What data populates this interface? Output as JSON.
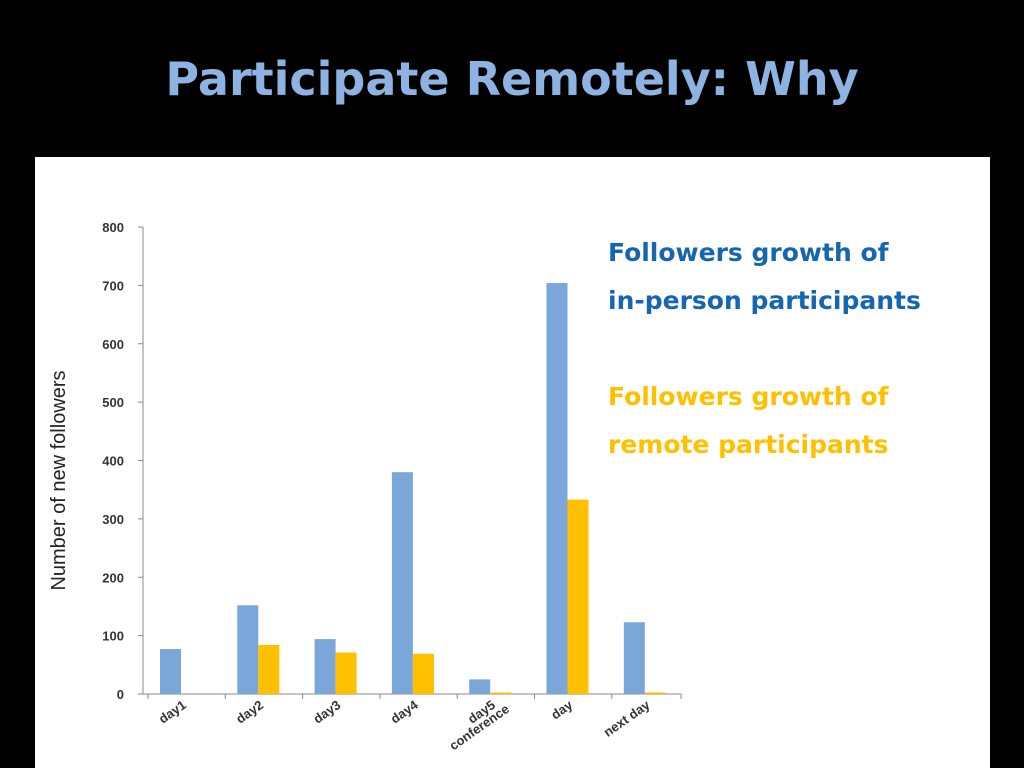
{
  "title": "Participate Remotely: Why",
  "legend": {
    "inperson_line1": "Followers growth of",
    "inperson_line2": "in-person participants",
    "remote_line1": "Followers growth of",
    "remote_line2": "remote participants"
  },
  "colors": {
    "background": "#000000",
    "title": "#8db3e2",
    "inperson_bar": "#7aa6da",
    "remote_bar": "#ffc000",
    "inperson_text": "#1565b0",
    "remote_text": "#ffc000"
  },
  "chart_data": {
    "type": "bar",
    "categories": [
      "day1",
      "day2",
      "day3",
      "day4",
      "day5\nconference",
      "day",
      "next day"
    ],
    "series": [
      {
        "name": "Followers growth of in-person participants",
        "values": [
          77,
          152,
          94,
          380,
          25,
          704,
          123
        ]
      },
      {
        "name": "Followers growth of remote participants",
        "values": [
          0,
          84,
          71,
          69,
          2,
          333,
          2
        ]
      }
    ],
    "ylabel": "Number of new followers",
    "xlabel": "",
    "ylim": [
      0,
      800
    ],
    "yticks": [
      "0",
      "100",
      "200",
      "300",
      "400",
      "500",
      "600",
      "700",
      "800"
    ],
    "grid": false,
    "legend_position": "top-right"
  }
}
